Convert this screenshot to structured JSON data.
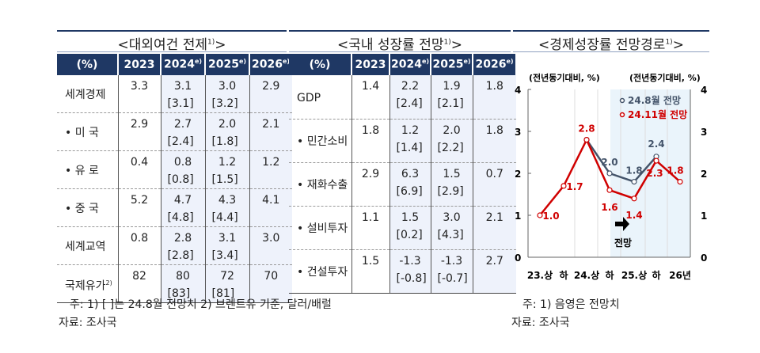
{
  "left": {
    "title": "<대외여건 전제",
    "title_sup": "1)",
    "title_end": ">",
    "headers": [
      "(%)",
      "2023",
      "2024",
      "2025",
      "2026"
    ],
    "header_sup": "e)",
    "rows": [
      {
        "label": "세계경제",
        "v2023": "3.3",
        "v2024": "3.1",
        "p2024": "[3.1]",
        "v2025": "3.0",
        "p2025": "[3.2]",
        "v2026": "2.9"
      },
      {
        "label": "• 미 국",
        "v2023": "2.9",
        "v2024": "2.7",
        "p2024": "[2.4]",
        "v2025": "2.0",
        "p2025": "[1.8]",
        "v2026": "2.1"
      },
      {
        "label": "• 유 로",
        "v2023": "0.4",
        "v2024": "0.8",
        "p2024": "[0.8]",
        "v2025": "1.2",
        "p2025": "[1.5]",
        "v2026": "1.2"
      },
      {
        "label": "• 중 국",
        "v2023": "5.2",
        "v2024": "4.7",
        "p2024": "[4.8]",
        "v2025": "4.3",
        "p2025": "[4.4]",
        "v2026": "4.1"
      },
      {
        "label": "세계교역",
        "v2023": "0.8",
        "v2024": "2.8",
        "p2024": "[2.8]",
        "v2025": "3.1",
        "p2025": "[3.4]",
        "v2026": "3.0"
      },
      {
        "label": "국제유가",
        "label_sup": "2)",
        "v2023": "82",
        "v2024": "80",
        "p2024": "[83]",
        "v2025": "72",
        "p2025": "[81]",
        "v2026": "70"
      }
    ],
    "note": "주: 1) [  ]는 24.8월 전망치  2) 브렌트유 기준, 달러/배럴",
    "source": "자료: 조사국"
  },
  "mid": {
    "title": "<국내 성장률 전망",
    "title_sup": "1)",
    "title_end": ">",
    "headers": [
      "(%)",
      "2023",
      "2024",
      "2025",
      "2026"
    ],
    "header_sup": "e)",
    "rows": [
      {
        "label": "GDP",
        "v2023": "1.4",
        "v2024": "2.2",
        "p2024": "[2.4]",
        "v2025": "1.9",
        "p2025": "[2.1]",
        "v2026": "1.8"
      },
      {
        "label": "• 민간소비",
        "v2023": "1.8",
        "v2024": "1.2",
        "p2024": "[1.4]",
        "v2025": "2.0",
        "p2025": "[2.2]",
        "v2026": "1.8"
      },
      {
        "label": "• 재화수출",
        "v2023": "2.9",
        "v2024": "6.3",
        "p2024": "[6.9]",
        "v2025": "1.5",
        "p2025": "[2.9]",
        "v2026": "0.7"
      },
      {
        "label": "• 설비투자",
        "v2023": "1.1",
        "v2024": "1.5",
        "p2024": "[0.2]",
        "v2025": "3.0",
        "p2025": "[4.3]",
        "v2026": "2.1"
      },
      {
        "label": "• 건설투자",
        "v2023": "1.5",
        "v2024": "-1.3",
        "p2024": "[-0.8]",
        "v2025": "-1.3",
        "p2025": "[-0.7]",
        "v2026": "2.7"
      }
    ]
  },
  "right": {
    "title": "<경제성장률 전망경로",
    "title_sup": "1)",
    "title_end": ">",
    "note": "주: 1) 음영은 전망치",
    "source": "자료: 조사국"
  },
  "chart_data": {
    "type": "line",
    "ylabel_left": "(전년동기대비, %)",
    "ylabel_right": "(전년동기대비, %)",
    "categories": [
      "23.상",
      "하",
      "24.상",
      "하",
      "25.상",
      "하",
      "26년"
    ],
    "ylim": [
      0,
      4
    ],
    "yticks": [
      "0",
      "1",
      "2",
      "3",
      "4"
    ],
    "forecast_label": "전망",
    "forecast_shaded_from": "24.하",
    "series": [
      {
        "name": "24.8월 전망",
        "color": "#44546a",
        "values": [
          null,
          null,
          2.8,
          2.0,
          1.8,
          2.4,
          null
        ],
        "labels": [
          null,
          null,
          null,
          "2.0",
          "1.8",
          "2.4",
          null
        ]
      },
      {
        "name": "24.11월 전망",
        "color": "#d00000",
        "values": [
          1.0,
          1.7,
          2.8,
          1.6,
          1.4,
          2.3,
          1.8
        ],
        "labels": [
          "1.0",
          "1.7",
          "2.8",
          "1.6",
          "1.4",
          "2.3",
          "1.8"
        ]
      }
    ]
  }
}
